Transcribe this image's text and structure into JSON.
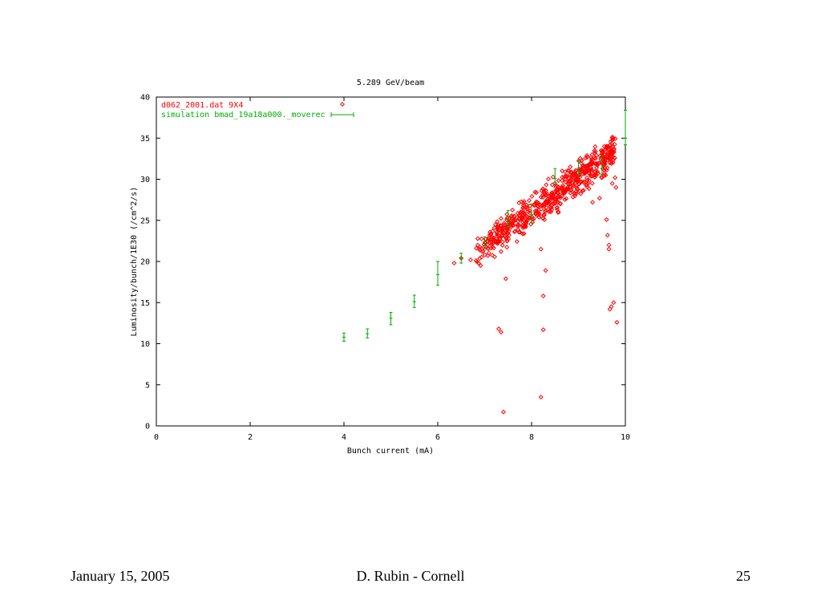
{
  "slide": {
    "footer_date": "January 15, 2005",
    "footer_author": "D. Rubin - Cornell",
    "footer_page": "25"
  },
  "chart_data": {
    "type": "scatter",
    "title": "5.289 GeV/beam",
    "xlabel": "Bunch current (mA)",
    "ylabel": "Luminosity/bunch/1E30 (/cm^2/s)",
    "xlim": [
      0,
      10
    ],
    "ylim": [
      0,
      40
    ],
    "xticks": [
      0,
      2,
      4,
      6,
      8,
      10
    ],
    "yticks": [
      0,
      5,
      10,
      15,
      20,
      25,
      30,
      35,
      40
    ],
    "grid": false,
    "legend_position": "top-left",
    "series": [
      {
        "name": "d062_2001.dat 9X4",
        "color": "#ff0000",
        "marker": "diamond",
        "band": {
          "x_range": [
            6.8,
            9.8
          ],
          "center_start": 21.0,
          "center_slope": 4.2,
          "spread": 1.2,
          "count": 600
        },
        "points": [
          [
            6.35,
            19.8
          ],
          [
            6.5,
            20.4
          ],
          [
            6.7,
            20.2
          ],
          [
            7.3,
            11.8
          ],
          [
            7.35,
            11.4
          ],
          [
            7.4,
            1.7
          ],
          [
            7.45,
            17.9
          ],
          [
            8.2,
            21.5
          ],
          [
            8.2,
            3.5
          ],
          [
            8.25,
            15.8
          ],
          [
            8.25,
            11.7
          ],
          [
            8.3,
            18.9
          ],
          [
            9.3,
            27.2
          ],
          [
            9.45,
            27.7
          ],
          [
            9.5,
            30.2
          ],
          [
            9.55,
            30.7
          ],
          [
            9.6,
            31.1
          ],
          [
            9.6,
            25.1
          ],
          [
            9.62,
            23.2
          ],
          [
            9.65,
            22.0
          ],
          [
            9.65,
            21.5
          ],
          [
            9.67,
            14.2
          ],
          [
            9.7,
            14.5
          ],
          [
            9.72,
            29.5
          ],
          [
            9.75,
            15.0
          ],
          [
            9.78,
            30.2
          ],
          [
            9.8,
            29.0
          ],
          [
            9.82,
            12.6
          ],
          [
            9.7,
            33.8
          ],
          [
            9.55,
            34.0
          ]
        ]
      },
      {
        "name": "simulation bmad_19a18a000._moverec",
        "color": "#00aa00",
        "marker": "errorbar",
        "points": [
          {
            "x": 4.0,
            "y": 10.8,
            "ylow": 10.3,
            "yhigh": 11.3
          },
          {
            "x": 4.5,
            "y": 11.2,
            "ylow": 10.7,
            "yhigh": 11.8
          },
          {
            "x": 5.0,
            "y": 13.1,
            "ylow": 12.3,
            "yhigh": 13.8
          },
          {
            "x": 5.5,
            "y": 15.1,
            "ylow": 14.4,
            "yhigh": 15.9
          },
          {
            "x": 6.0,
            "y": 18.4,
            "ylow": 17.1,
            "yhigh": 20.0
          },
          {
            "x": 6.5,
            "y": 20.4,
            "ylow": 19.8,
            "yhigh": 21.0
          },
          {
            "x": 7.0,
            "y": 22.4,
            "ylow": 21.7,
            "yhigh": 23.0
          },
          {
            "x": 7.5,
            "y": 25.1,
            "ylow": 24.2,
            "yhigh": 26.2
          },
          {
            "x": 8.0,
            "y": 25.7,
            "ylow": 24.7,
            "yhigh": 27.0
          },
          {
            "x": 8.5,
            "y": 30.1,
            "ylow": 29.4,
            "yhigh": 31.3
          },
          {
            "x": 9.0,
            "y": 31.0,
            "ylow": 30.4,
            "yhigh": 32.3
          },
          {
            "x": 9.5,
            "y": 31.3,
            "ylow": 30.6,
            "yhigh": 32.9
          },
          {
            "x": 10.0,
            "y": 35.0,
            "ylow": 34.2,
            "yhigh": 38.4
          }
        ]
      }
    ]
  }
}
